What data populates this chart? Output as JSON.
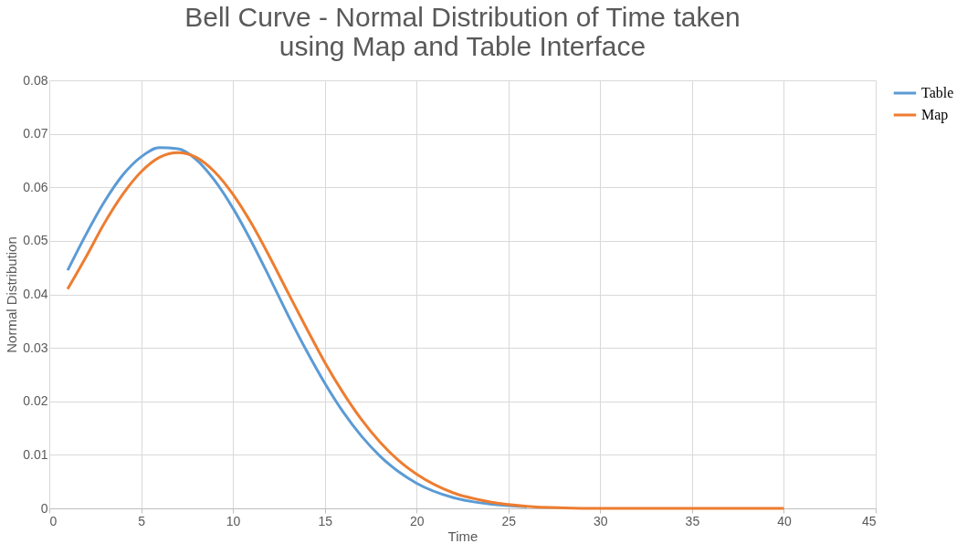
{
  "chart_data": {
    "type": "line",
    "title": "Bell Curve - Normal Distribution of Time taken using Map and Table Interface",
    "xlabel": "Time",
    "ylabel": "Normal Distribution",
    "x": [
      1,
      2,
      3,
      4,
      5,
      6,
      7,
      8,
      9,
      10,
      11,
      12,
      13,
      14,
      15,
      16,
      17,
      18,
      19,
      20,
      22,
      24,
      26,
      28,
      30,
      35,
      40
    ],
    "series": [
      {
        "name": "Table",
        "color": "#5b9bd5",
        "values": [
          0.0445,
          0.0512,
          0.0573,
          0.0623,
          0.0657,
          0.0674,
          0.0672,
          0.0652,
          0.0613,
          0.0561,
          0.0499,
          0.0431,
          0.0361,
          0.0295,
          0.0234,
          0.018,
          0.0135,
          0.0098,
          0.0069,
          0.0047,
          0.002,
          0.0008,
          0.0003,
          null,
          null,
          null,
          null
        ]
      },
      {
        "name": "Map",
        "color": "#ed7d31",
        "values": [
          0.041,
          0.047,
          0.0533,
          0.0587,
          0.0629,
          0.0656,
          0.0665,
          0.0656,
          0.0629,
          0.0587,
          0.0533,
          0.047,
          0.0403,
          0.0337,
          0.0273,
          0.0216,
          0.0166,
          0.0124,
          0.009,
          0.0064,
          0.0029,
          0.0012,
          0.0004,
          0.0001,
          0,
          0,
          0
        ]
      }
    ],
    "xlim": [
      0,
      45
    ],
    "xticks": [
      0,
      5,
      10,
      15,
      20,
      25,
      30,
      35,
      40,
      45
    ],
    "ylim": [
      0,
      0.08
    ],
    "yticks": [
      0,
      0.01,
      0.02,
      0.03,
      0.04,
      0.05,
      0.06,
      0.07,
      0.08
    ],
    "grid": true,
    "legend": "right",
    "marker": "none",
    "line_style": "solid"
  }
}
